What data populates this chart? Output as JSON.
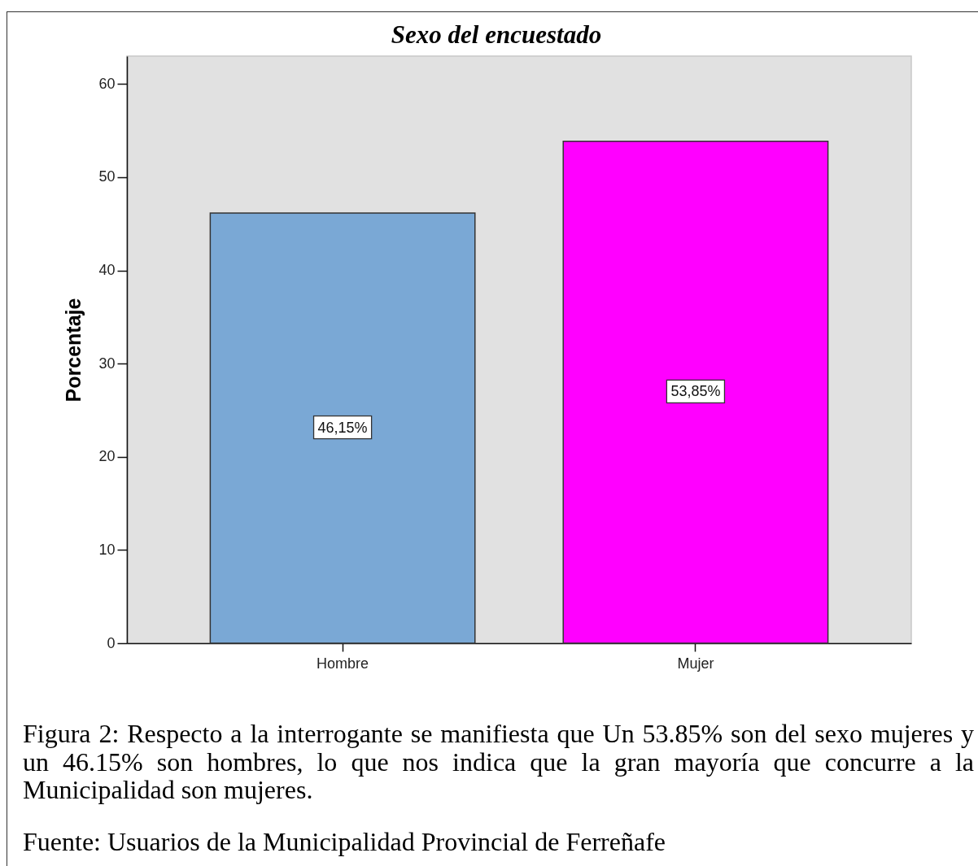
{
  "chart_data": {
    "type": "bar",
    "title": "Sexo del encuestado",
    "ylabel": "Porcentaje",
    "categories": [
      "Hombre",
      "Mujer"
    ],
    "values": [
      46.15,
      53.85
    ],
    "colors": [
      "#7aa8d5",
      "#ff00ff"
    ],
    "value_labels": [
      "46,15%",
      "53,85%"
    ],
    "ylim": [
      0,
      63
    ],
    "yticks": [
      0,
      10,
      20,
      30,
      40,
      50,
      60
    ],
    "annotations": [
      "Figura 2: Respecto a la interrogante se manifiesta que Un 53.85% son del sexo mujeres y un 46.15% son hombres, lo que nos indica que la gran mayoría que concurre a la Municipalidad son mujeres.",
      "Fuente: Usuarios de la Municipalidad Provincial de Ferreñafe"
    ]
  }
}
